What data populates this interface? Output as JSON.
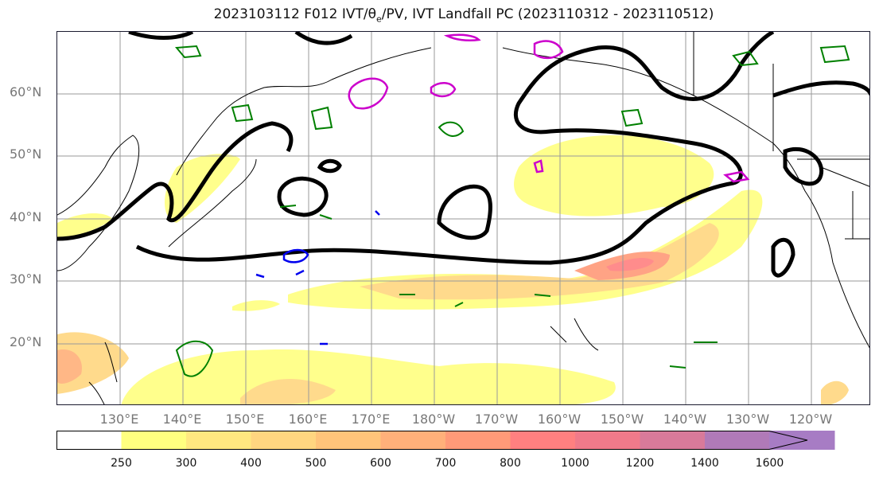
{
  "title": "2023103112 F012 IVT/θ",
  "title_sub": "e",
  "title_rest": "/PV, IVT Landfall PC (2023110312 - 2023110512)",
  "lat_labels": [
    "60°N",
    "50°N",
    "40°N",
    "30°N",
    "20°N"
  ],
  "lon_labels": [
    "130°E",
    "140°E",
    "150°E",
    "160°E",
    "170°E",
    "180°W",
    "170°W",
    "160°W",
    "150°W",
    "140°W",
    "130°W",
    "120°W"
  ],
  "colorbar": {
    "ticks": [
      "250",
      "300",
      "400",
      "500",
      "600",
      "700",
      "800",
      "1000",
      "1200",
      "1400",
      "1600"
    ],
    "colors": [
      "#ffffff",
      "#ffff80",
      "#ffe880",
      "#ffd680",
      "#ffc47a",
      "#ffb07a",
      "#ff9a78",
      "#ff8080",
      "#f07a8a",
      "#d87a9a",
      "#b07ab8",
      "#a77cc4"
    ]
  },
  "legend_colors": {
    "ivt_contour": "#000000",
    "theta_e": "#008000",
    "pv_positive": "#cc00cc",
    "pv_negative": "#0000ee"
  }
}
